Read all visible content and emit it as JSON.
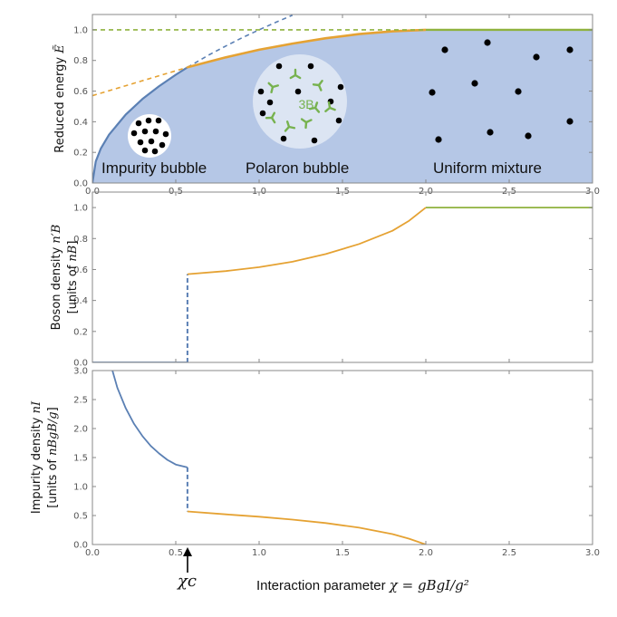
{
  "chart_data": [
    {
      "type": "line",
      "panel": "energy",
      "ylabel_text": "Reduced energy ",
      "ylabel_symbol": "Ẽ",
      "xlim": [
        0,
        3.0
      ],
      "ylim": [
        0,
        1.1
      ],
      "xticks": [
        "0.0",
        "0.5",
        "1.0",
        "1.5",
        "2.0",
        "2.5",
        "3.0"
      ],
      "yticks": [
        "0.0",
        "0.2",
        "0.4",
        "0.6",
        "0.8",
        "1.0"
      ],
      "region_labels": [
        "Impurity bubble",
        "Polaron bubble",
        "Uniform mixture"
      ],
      "inset_label": "3B",
      "series": [
        {
          "style": "impurity-bubble-energy-solid",
          "x": [
            0,
            0.02,
            0.05,
            0.1,
            0.2,
            0.3,
            0.4,
            0.5,
            0.57
          ],
          "y": [
            0,
            0.141,
            0.224,
            0.316,
            0.447,
            0.548,
            0.632,
            0.707,
            0.755
          ]
        },
        {
          "style": "impurity-bubble-energy-dashed",
          "x": [
            0.57,
            0.7,
            0.8,
            0.9,
            1.0,
            1.1,
            1.2
          ],
          "y": [
            0.755,
            0.837,
            0.894,
            0.949,
            1.0,
            1.049,
            1.095
          ]
        },
        {
          "style": "polaron-bubble-energy-solid",
          "x": [
            0.57,
            0.8,
            1.0,
            1.2,
            1.4,
            1.6,
            1.8,
            2.0
          ],
          "y": [
            0.755,
            0.82,
            0.87,
            0.91,
            0.945,
            0.972,
            0.99,
            1.0
          ]
        },
        {
          "style": "polaron-bubble-energy-dashed",
          "x": [
            0,
            0.2,
            0.4,
            0.57
          ],
          "y": [
            0.57,
            0.635,
            0.7,
            0.755
          ]
        },
        {
          "style": "uniform-mixture-energy-dashed",
          "x": [
            0,
            2.0
          ],
          "y": [
            1.0,
            1.0
          ]
        },
        {
          "style": "uniform-mixture-energy-solid",
          "x": [
            2.0,
            3.0
          ],
          "y": [
            1.0,
            1.0
          ]
        }
      ]
    },
    {
      "type": "line",
      "panel": "boson-density",
      "ylabel_line1": "Boson density ",
      "ylabel_line1_symbol": "n′B",
      "ylabel_line2": "[units of ",
      "ylabel_line2_symbol": "nB",
      "ylabel_line2_end": "]",
      "xlim": [
        0,
        3.0
      ],
      "ylim": [
        0,
        1.1
      ],
      "yticks": [
        "0.0",
        "0.2",
        "0.4",
        "0.6",
        "0.8",
        "1.0"
      ],
      "series": [
        {
          "style": "impurity-bubble-density",
          "x": [
            0,
            0.57
          ],
          "y": [
            0,
            0
          ]
        },
        {
          "style": "transition-jump",
          "x": [
            0.57,
            0.57
          ],
          "y": [
            0,
            0.57
          ]
        },
        {
          "style": "polaron-bubble-density",
          "x": [
            0.57,
            0.8,
            1.0,
            1.2,
            1.4,
            1.6,
            1.8,
            1.9,
            2.0
          ],
          "y": [
            0.57,
            0.59,
            0.615,
            0.65,
            0.7,
            0.765,
            0.85,
            0.915,
            1.0
          ]
        },
        {
          "style": "uniform-mixture-density",
          "x": [
            2.0,
            3.0
          ],
          "y": [
            1.0,
            1.0
          ]
        }
      ]
    },
    {
      "type": "line",
      "panel": "impurity-density",
      "ylabel_line1": "Impurity density ",
      "ylabel_line1_symbol": "nI",
      "ylabel_line2": "[units of ",
      "ylabel_line2_symbol": "nBgB/g",
      "ylabel_line2_end": "]",
      "xlim": [
        0,
        3.0
      ],
      "ylim": [
        0,
        3.0
      ],
      "xticks": [
        "0.0",
        "0.5",
        "1.0",
        "1.5",
        "2.0",
        "2.5",
        "3.0"
      ],
      "yticks": [
        "0.0",
        "0.5",
        "1.0",
        "1.5",
        "2.0",
        "2.5",
        "3.0"
      ],
      "xlabel_text": "Interaction parameter ",
      "xlabel_formula": "χ = gBgI/g²",
      "critical_label": "χc",
      "series": [
        {
          "style": "impurity-bubble-density",
          "x": [
            0.12,
            0.15,
            0.2,
            0.25,
            0.3,
            0.35,
            0.4,
            0.45,
            0.5,
            0.57
          ],
          "y": [
            3.0,
            2.7,
            2.35,
            2.08,
            1.87,
            1.7,
            1.57,
            1.46,
            1.38,
            1.33
          ]
        },
        {
          "style": "transition-jump",
          "x": [
            0.57,
            0.57
          ],
          "y": [
            1.33,
            0.57
          ]
        },
        {
          "style": "polaron-bubble-density",
          "x": [
            0.57,
            0.8,
            1.0,
            1.2,
            1.4,
            1.6,
            1.8,
            1.9,
            2.0
          ],
          "y": [
            0.57,
            0.52,
            0.48,
            0.43,
            0.37,
            0.29,
            0.18,
            0.1,
            0.0
          ]
        }
      ]
    }
  ],
  "colors": {
    "blue": "#5b80b4",
    "orange": "#e5a233",
    "green": "#8fb23e",
    "fill": "#b5c7e6",
    "inset_circle": "#dce5f3",
    "inset_green": "#77b24f",
    "axis": "#888888"
  }
}
